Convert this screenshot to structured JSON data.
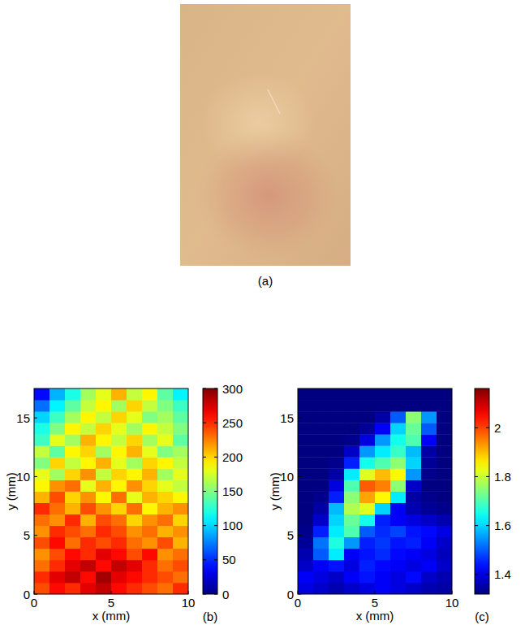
{
  "photo": {
    "caption": "(a)"
  },
  "chart_data": [
    {
      "type": "heatmap",
      "caption": "(b)",
      "x_label": "x (mm)",
      "y_label": "y (mm)",
      "xlim": [
        0,
        10
      ],
      "ylim": [
        0,
        17.5
      ],
      "xticks": [
        0,
        5,
        10
      ],
      "yticks": [
        0,
        5,
        10,
        15
      ],
      "color": "jet",
      "color_range": [
        0,
        300
      ],
      "color_ticks": [
        0,
        50,
        100,
        150,
        200,
        250,
        300
      ],
      "cells": [
        [
          240,
          260,
          250,
          270,
          280,
          260,
          250,
          240,
          230,
          250
        ],
        [
          250,
          270,
          280,
          260,
          290,
          270,
          260,
          250,
          240,
          230
        ],
        [
          230,
          250,
          270,
          280,
          260,
          280,
          270,
          250,
          230,
          240
        ],
        [
          220,
          240,
          260,
          250,
          270,
          260,
          240,
          260,
          220,
          230
        ],
        [
          240,
          260,
          230,
          250,
          240,
          250,
          230,
          220,
          240,
          210
        ],
        [
          220,
          250,
          240,
          230,
          250,
          240,
          220,
          230,
          210,
          220
        ],
        [
          230,
          220,
          250,
          210,
          240,
          230,
          200,
          220,
          230,
          200
        ],
        [
          250,
          230,
          210,
          240,
          220,
          200,
          230,
          190,
          210,
          220
        ],
        [
          210,
          240,
          200,
          220,
          190,
          230,
          180,
          210,
          200,
          190
        ],
        [
          190,
          220,
          230,
          180,
          210,
          190,
          220,
          200,
          180,
          170
        ],
        [
          180,
          160,
          200,
          220,
          170,
          200,
          190,
          210,
          160,
          180
        ],
        [
          150,
          200,
          170,
          190,
          210,
          180,
          160,
          200,
          190,
          170
        ],
        [
          170,
          140,
          190,
          200,
          160,
          190,
          210,
          180,
          150,
          160
        ],
        [
          130,
          180,
          160,
          210,
          190,
          170,
          200,
          160,
          180,
          140
        ],
        [
          120,
          150,
          190,
          170,
          200,
          180,
          160,
          190,
          170,
          150
        ],
        [
          100,
          130,
          160,
          190,
          170,
          200,
          180,
          150,
          160,
          140
        ],
        [
          70,
          110,
          140,
          170,
          190,
          160,
          200,
          170,
          150,
          130
        ],
        [
          40,
          90,
          120,
          160,
          180,
          210,
          170,
          190,
          140,
          110
        ]
      ]
    },
    {
      "type": "heatmap",
      "caption": "(c)",
      "x_label": "x (mm)",
      "y_label": "y (mm)",
      "xlim": [
        0,
        10
      ],
      "ylim": [
        0,
        17.5
      ],
      "xticks": [
        0,
        5,
        10
      ],
      "yticks": [
        0,
        5,
        10,
        15
      ],
      "color": "jet",
      "color_range": [
        1.32,
        2.16
      ],
      "color_ticks": [
        1.4,
        1.6,
        1.8,
        2
      ],
      "cells": [
        [
          1.4,
          1.38,
          1.36,
          1.38,
          1.4,
          1.42,
          1.4,
          1.38,
          1.36,
          1.35
        ],
        [
          1.42,
          1.4,
          1.38,
          1.42,
          1.44,
          1.42,
          1.4,
          1.43,
          1.38,
          1.36
        ],
        [
          1.38,
          1.42,
          1.44,
          1.4,
          1.45,
          1.43,
          1.42,
          1.4,
          1.42,
          1.38
        ],
        [
          1.36,
          1.5,
          1.62,
          1.42,
          1.44,
          1.46,
          1.43,
          1.42,
          1.4,
          1.37
        ],
        [
          1.34,
          1.52,
          1.66,
          1.55,
          1.45,
          1.47,
          1.44,
          1.45,
          1.42,
          1.38
        ],
        [
          1.33,
          1.45,
          1.62,
          1.7,
          1.5,
          1.46,
          1.48,
          1.44,
          1.43,
          1.4
        ],
        [
          1.32,
          1.38,
          1.6,
          1.72,
          1.65,
          1.45,
          1.42,
          1.4,
          1.38,
          1.36
        ],
        [
          1.32,
          1.35,
          1.58,
          1.78,
          1.82,
          1.6,
          1.42,
          1.36,
          1.34,
          1.33
        ],
        [
          1.32,
          1.33,
          1.45,
          1.75,
          1.92,
          1.85,
          1.62,
          1.35,
          1.33,
          1.32
        ],
        [
          1.32,
          1.32,
          1.4,
          1.7,
          1.98,
          1.95,
          1.75,
          1.38,
          1.32,
          1.32
        ],
        [
          1.32,
          1.32,
          1.35,
          1.62,
          1.82,
          1.9,
          1.85,
          1.55,
          1.33,
          1.32
        ],
        [
          1.32,
          1.32,
          1.33,
          1.45,
          1.65,
          1.7,
          1.75,
          1.6,
          1.34,
          1.32
        ],
        [
          1.32,
          1.32,
          1.32,
          1.38,
          1.55,
          1.62,
          1.68,
          1.58,
          1.35,
          1.32
        ],
        [
          1.32,
          1.32,
          1.32,
          1.33,
          1.4,
          1.55,
          1.65,
          1.7,
          1.42,
          1.32
        ],
        [
          1.32,
          1.32,
          1.32,
          1.32,
          1.34,
          1.42,
          1.6,
          1.72,
          1.5,
          1.32
        ],
        [
          1.32,
          1.32,
          1.32,
          1.32,
          1.32,
          1.35,
          1.5,
          1.75,
          1.55,
          1.32
        ],
        [
          1.32,
          1.32,
          1.32,
          1.32,
          1.32,
          1.32,
          1.32,
          1.32,
          1.32,
          1.32
        ],
        [
          1.32,
          1.32,
          1.32,
          1.32,
          1.32,
          1.32,
          1.32,
          1.32,
          1.32,
          1.32
        ]
      ]
    }
  ]
}
